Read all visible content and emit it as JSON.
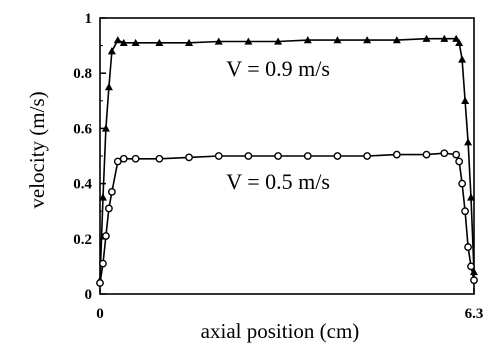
{
  "chart_data": {
    "type": "line",
    "xlabel": "axial position (cm)",
    "ylabel": "velocity (m/s)",
    "xlim": [
      0,
      6.3
    ],
    "ylim": [
      0,
      1
    ],
    "x_ticks": [
      {
        "value": 0,
        "label": "0"
      },
      {
        "value": 6.3,
        "label": "6.3"
      }
    ],
    "y_ticks": [
      {
        "value": 0,
        "label": "0"
      },
      {
        "value": 0.2,
        "label": "0.2"
      },
      {
        "value": 0.4,
        "label": "0.4"
      },
      {
        "value": 0.6,
        "label": "0.6"
      },
      {
        "value": 0.8,
        "label": "0.8"
      },
      {
        "value": 1,
        "label": "1"
      }
    ],
    "grid": false,
    "annotations": [
      {
        "text": "V = 0.9 m/s",
        "x": 3.0,
        "y": 0.79
      },
      {
        "text": "V = 0.5 m/s",
        "x": 3.0,
        "y": 0.38
      }
    ],
    "series": [
      {
        "marker": "triangle",
        "x": [
          0.0,
          0.05,
          0.1,
          0.15,
          0.2,
          0.3,
          0.4,
          0.6,
          1.0,
          1.5,
          2.0,
          2.5,
          3.0,
          3.5,
          4.0,
          4.5,
          5.0,
          5.5,
          5.8,
          6.0,
          6.05,
          6.1,
          6.15,
          6.2,
          6.25,
          6.3
        ],
        "values": [
          0.05,
          0.35,
          0.6,
          0.75,
          0.88,
          0.92,
          0.91,
          0.91,
          0.91,
          0.91,
          0.915,
          0.915,
          0.915,
          0.92,
          0.92,
          0.92,
          0.92,
          0.925,
          0.925,
          0.925,
          0.91,
          0.85,
          0.7,
          0.55,
          0.35,
          0.08
        ]
      },
      {
        "marker": "circle",
        "x": [
          0.0,
          0.05,
          0.1,
          0.15,
          0.2,
          0.3,
          0.4,
          0.6,
          1.0,
          1.5,
          2.0,
          2.5,
          3.0,
          3.5,
          4.0,
          4.5,
          5.0,
          5.5,
          5.8,
          6.0,
          6.05,
          6.1,
          6.15,
          6.2,
          6.25,
          6.3
        ],
        "values": [
          0.04,
          0.11,
          0.21,
          0.31,
          0.37,
          0.48,
          0.49,
          0.49,
          0.49,
          0.495,
          0.5,
          0.5,
          0.5,
          0.5,
          0.5,
          0.5,
          0.505,
          0.505,
          0.51,
          0.505,
          0.48,
          0.4,
          0.3,
          0.17,
          0.1,
          0.05
        ]
      }
    ]
  }
}
